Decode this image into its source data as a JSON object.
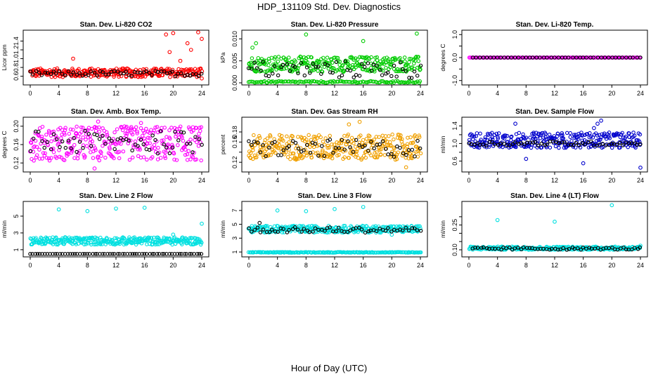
{
  "figure": {
    "title": "HDP_131109  Std. Dev. Diagnostics",
    "xlabel": "Hour of Day (UTC)"
  },
  "chart_data": [
    {
      "type": "scatter",
      "title": "Stan. Dev. Li-820 CO2",
      "ylabel": "Licor ppm",
      "xlim": [
        0,
        24
      ],
      "ylim": [
        0.45,
        1.6
      ],
      "xticks": [
        "0",
        "4",
        "8",
        "12",
        "16",
        "20",
        "24"
      ],
      "yticks": [
        0.6,
        0.8,
        1.0,
        1.2,
        1.4
      ],
      "ytick_labels": [
        "0.6",
        "0.8",
        "1.0",
        "1.2",
        "1.4"
      ],
      "series": [
        {
          "color": "#ff0000",
          "x_range": [
            0,
            24
          ],
          "band": [
            0.58,
            0.78
          ],
          "count": 300,
          "points": [
            [
              6,
              1.0
            ],
            [
              19,
              1.55
            ],
            [
              20,
              1.58
            ],
            [
              19.5,
              1.15
            ],
            [
              22,
              1.35
            ],
            [
              22.5,
              1.2
            ],
            [
              24,
              1.45
            ],
            [
              23.5,
              1.6
            ],
            [
              21,
              0.95
            ],
            [
              24,
              0.55
            ]
          ]
        },
        {
          "color": "#000000",
          "x_range": [
            0,
            24
          ],
          "band": [
            0.6,
            0.72
          ],
          "count": 60,
          "points": []
        }
      ]
    },
    {
      "type": "scatter",
      "title": "Stan. Dev. Li-820 Pressure",
      "ylabel": "kPa",
      "xlim": [
        0,
        24
      ],
      "ylim": [
        0,
        0.0115
      ],
      "xticks": [
        "0",
        "4",
        "8",
        "12",
        "16",
        "20",
        "24"
      ],
      "yticks": [
        0.0,
        0.005,
        0.01
      ],
      "ytick_labels": [
        "0.000",
        "0.005",
        "0.010"
      ],
      "series": [
        {
          "color": "#00cc00",
          "x_range": [
            0,
            24
          ],
          "band": [
            0.0025,
            0.006
          ],
          "count": 300,
          "points": [
            [
              0.5,
              0.008
            ],
            [
              1,
              0.009
            ],
            [
              8,
              0.011
            ],
            [
              16,
              0.0095
            ],
            [
              23.5,
              0.0112
            ]
          ]
        },
        {
          "color": "#00cc00",
          "x_range": [
            0,
            24
          ],
          "band": [
            0.0,
            0.0004
          ],
          "count": 120,
          "points": []
        },
        {
          "color": "#000000",
          "x_range": [
            0,
            24
          ],
          "band": [
            0.001,
            0.005
          ],
          "count": 60,
          "points": []
        }
      ]
    },
    {
      "type": "scatter",
      "title": "Stan. Dev. Li-820 Temp.",
      "ylabel": "degrees C",
      "xlim": [
        0,
        24
      ],
      "ylim": [
        -1.1,
        1.1
      ],
      "xticks": [
        "0",
        "4",
        "8",
        "12",
        "16",
        "20",
        "24"
      ],
      "yticks": [
        -1.0,
        -0.5,
        0.0,
        0.5,
        1.0
      ],
      "ytick_labels": [
        "-1.0",
        "",
        "0.0",
        "",
        "1.0"
      ],
      "series": [
        {
          "color": "#ff00ff",
          "x_range": [
            0,
            24
          ],
          "band": [
            0.0,
            0.0
          ],
          "count": 150,
          "points": []
        },
        {
          "color": "#000000",
          "x_range": [
            0.5,
            24
          ],
          "band": [
            0.0,
            0.0
          ],
          "count": 48,
          "points": []
        }
      ]
    },
    {
      "type": "scatter",
      "title": "Stan. Dev. Amb. Box Temp.",
      "ylabel": "degrees C",
      "xlim": [
        0,
        24
      ],
      "ylim": [
        0.105,
        0.215
      ],
      "xticks": [
        "0",
        "4",
        "8",
        "12",
        "16",
        "20",
        "24"
      ],
      "yticks": [
        0.12,
        0.16,
        0.2
      ],
      "ytick_labels": [
        "0.12",
        "0.16",
        "0.20"
      ],
      "series": [
        {
          "color": "#ff00ff",
          "x_range": [
            0,
            24
          ],
          "band": [
            0.125,
            0.2
          ],
          "count": 330,
          "points": [
            [
              9.5,
              0.21
            ],
            [
              9,
              0.108
            ],
            [
              15.5,
              0.207
            ]
          ]
        },
        {
          "color": "#000000",
          "x_range": [
            0,
            24
          ],
          "band": [
            0.14,
            0.19
          ],
          "count": 60,
          "points": []
        }
      ]
    },
    {
      "type": "scatter",
      "title": "Stan. Dev. Gas Stream RH",
      "ylabel": "percent",
      "xlim": [
        0,
        24
      ],
      "ylim": [
        0.105,
        0.205
      ],
      "xticks": [
        "0",
        "4",
        "8",
        "12",
        "16",
        "20",
        "24"
      ],
      "yticks": [
        0.12,
        0.14,
        0.16,
        0.18
      ],
      "ytick_labels": [
        "0.12",
        "",
        "0.16",
        "0.18"
      ],
      "series": [
        {
          "color": "#f0a000",
          "x_range": [
            0,
            24
          ],
          "band": [
            0.125,
            0.175
          ],
          "count": 340,
          "points": [
            [
              15.5,
              0.2
            ],
            [
              14,
              0.195
            ],
            [
              22,
              0.11
            ]
          ]
        },
        {
          "color": "#000000",
          "x_range": [
            0,
            24
          ],
          "band": [
            0.13,
            0.165
          ],
          "count": 60,
          "points": []
        }
      ]
    },
    {
      "type": "scatter",
      "title": "Stan. Dev. Sample Flow",
      "ylabel": "ml/min",
      "xlim": [
        0,
        24
      ],
      "ylim": [
        0.4,
        1.55
      ],
      "xticks": [
        "0",
        "4",
        "8",
        "12",
        "16",
        "20",
        "24"
      ],
      "yticks": [
        0.6,
        0.8,
        1.0,
        1.2,
        1.4
      ],
      "ytick_labels": [
        "0.6",
        "",
        "1.0",
        "",
        "1.4"
      ],
      "series": [
        {
          "color": "#0000cc",
          "x_range": [
            0,
            24
          ],
          "band": [
            0.9,
            1.25
          ],
          "count": 320,
          "points": [
            [
              6.5,
              1.45
            ],
            [
              8,
              0.65
            ],
            [
              16,
              0.55
            ],
            [
              17.5,
              1.35
            ],
            [
              18,
              1.45
            ],
            [
              18.5,
              1.52
            ],
            [
              24,
              0.45
            ]
          ]
        },
        {
          "color": "#000000",
          "x_range": [
            0,
            24
          ],
          "band": [
            0.95,
            1.05
          ],
          "count": 60,
          "points": []
        }
      ]
    },
    {
      "type": "scatter",
      "title": "Stan. Dev. Line 2 Flow",
      "ylabel": "ml/min",
      "xlim": [
        0,
        24
      ],
      "ylim": [
        0.4,
        6.5
      ],
      "xticks": [
        "0",
        "4",
        "8",
        "12",
        "16",
        "20",
        "24"
      ],
      "yticks": [
        1,
        3,
        5
      ],
      "ytick_labels": [
        "1",
        "3",
        "5"
      ],
      "series": [
        {
          "color": "#00e0e0",
          "x_range": [
            0,
            24
          ],
          "band": [
            1.6,
            2.5
          ],
          "count": 330,
          "points": [
            [
              4,
              5.8
            ],
            [
              8,
              5.6
            ],
            [
              12,
              5.9
            ],
            [
              16,
              6.0
            ],
            [
              20,
              2.8
            ],
            [
              24,
              4.1
            ]
          ]
        },
        {
          "color": "#000000",
          "x_range": [
            0,
            24
          ],
          "band": [
            0.5,
            0.5
          ],
          "count": 70,
          "points": []
        }
      ]
    },
    {
      "type": "scatter",
      "title": "Stan. Dev. Line 3 Flow",
      "ylabel": "ml/min",
      "xlim": [
        0,
        24
      ],
      "ylim": [
        0.6,
        8
      ],
      "xticks": [
        "0",
        "4",
        "8",
        "12",
        "16",
        "20",
        "24"
      ],
      "yticks": [
        1,
        3,
        5,
        7
      ],
      "ytick_labels": [
        "1",
        "3",
        "5",
        "7"
      ],
      "series": [
        {
          "color": "#00e0e0",
          "x_range": [
            0,
            24
          ],
          "band": [
            3.8,
            4.8
          ],
          "count": 300,
          "points": [
            [
              4,
              7.0
            ],
            [
              8,
              6.9
            ],
            [
              12,
              7.2
            ],
            [
              16,
              7.5
            ],
            [
              20,
              3.5
            ]
          ]
        },
        {
          "color": "#00e0e0",
          "x_range": [
            0,
            24
          ],
          "band": [
            0.9,
            1.0
          ],
          "count": 200,
          "points": []
        },
        {
          "color": "#000000",
          "x_range": [
            0,
            24
          ],
          "band": [
            3.8,
            4.6
          ],
          "count": 60,
          "points": [
            [
              1.5,
              5.2
            ]
          ]
        }
      ]
    },
    {
      "type": "scatter",
      "title": "Stan. Dev. Line 4 (LT) Flow",
      "ylabel": "ml/min",
      "xlim": [
        0,
        24
      ],
      "ylim": [
        0.07,
        0.38
      ],
      "xticks": [
        "0",
        "4",
        "8",
        "12",
        "16",
        "20",
        "24"
      ],
      "yticks": [
        0.1,
        0.15,
        0.2,
        0.25,
        0.3
      ],
      "ytick_labels": [
        "0.10",
        "",
        "",
        "0.25",
        ""
      ],
      "series": [
        {
          "color": "#00e0e0",
          "x_range": [
            0,
            24
          ],
          "band": [
            0.1,
            0.12
          ],
          "count": 300,
          "points": [
            [
              4,
              0.28
            ],
            [
              12,
              0.27
            ],
            [
              20,
              0.37
            ],
            [
              24,
              0.125
            ]
          ]
        },
        {
          "color": "#000000",
          "x_range": [
            0.5,
            24
          ],
          "band": [
            0.1,
            0.115
          ],
          "count": 60,
          "points": []
        }
      ]
    }
  ]
}
